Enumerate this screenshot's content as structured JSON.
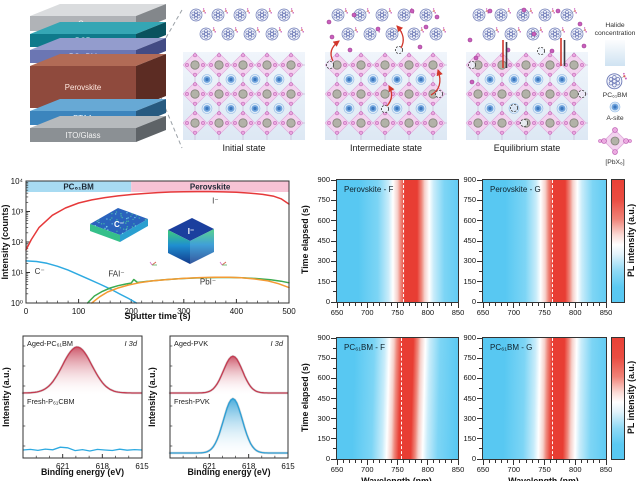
{
  "top": {
    "device_stack": {
      "layers": [
        {
          "label": "Cu",
          "front": "#b0b3b7",
          "top": "#dadcde",
          "side": "#83878b",
          "text": "#f8f8f8",
          "h": 15
        },
        {
          "label": "BCP",
          "front": "#0f7a8b",
          "top": "#35a6b4",
          "side": "#09525e",
          "text": "#eafcff",
          "h": 13
        },
        {
          "label": "PC₆₁BM",
          "front": "#6b76b3",
          "top": "#939ccd",
          "side": "#424b84",
          "text": "#eef0ff",
          "h": 13
        },
        {
          "label": "Perovskite",
          "front": "#8f4a3d",
          "top": "#b26b56",
          "side": "#5c2c23",
          "text": "#ffe9e1",
          "h": 42
        },
        {
          "label": "PTAA",
          "front": "#3c85bd",
          "top": "#67a9d5",
          "side": "#275a80",
          "text": "#eaf6ff",
          "h": 14
        },
        {
          "label": "ITO/Glass",
          "front": "#8b9094",
          "top": "#b6babd",
          "side": "#5e6367",
          "text": "#f4f4f4",
          "h": 14
        }
      ]
    },
    "state_captions": [
      "Initial state",
      "Intermediate state",
      "Equilibrium state"
    ],
    "legend": {
      "halide": "Halide concentration",
      "pcbm": "PC₆₁BM",
      "asite": "A-site",
      "pbx": "[PbX₆]"
    }
  },
  "palette": {
    "heat_low": "#58c8f2",
    "heat_high": "#e83d33",
    "ion_red": "#e6393a",
    "carbon_blue": "#2eaae1",
    "fai_green": "#3cab50",
    "pbi_orange": "#f49a33"
  },
  "chart_data": [
    {
      "id": "tof-sims-depth-profile",
      "type": "line",
      "xlabel": "Sputter time (s)",
      "ylabel": "Intensity (counts)",
      "xlim": [
        0,
        500
      ],
      "ylog": true,
      "ylim": [
        1,
        10000
      ],
      "x_ticks": [
        0,
        100,
        200,
        300,
        400,
        500
      ],
      "y_tick_labels": [
        "10⁰",
        "10¹",
        "10²",
        "10³",
        "10⁴"
      ],
      "regions": [
        {
          "label": "PC₆₁BM",
          "x0": 0,
          "x1": 200,
          "color": "#a8dbf2"
        },
        {
          "label": "Perovskite",
          "x0": 200,
          "x1": 500,
          "color": "#f7c3d5"
        }
      ],
      "series": [
        {
          "name": "I⁻",
          "color": "#e6393a",
          "points": [
            [
              0,
              55
            ],
            [
              10,
              120
            ],
            [
              25,
              300
            ],
            [
              50,
              750
            ],
            [
              75,
              1300
            ],
            [
              100,
              1900
            ],
            [
              125,
              2400
            ],
            [
              150,
              2850
            ],
            [
              175,
              3250
            ],
            [
              200,
              3600
            ],
            [
              225,
              3900
            ],
            [
              250,
              4150
            ],
            [
              275,
              4350
            ],
            [
              300,
              4450
            ],
            [
              325,
              4500
            ],
            [
              350,
              4480
            ],
            [
              375,
              4400
            ],
            [
              400,
              4250
            ],
            [
              425,
              4000
            ],
            [
              450,
              3650
            ],
            [
              470,
              3200
            ],
            [
              485,
              2600
            ],
            [
              500,
              1750
            ]
          ]
        },
        {
          "name": "C⁻",
          "color": "#2eaae1",
          "points": [
            [
              0,
              24
            ],
            [
              20,
              23
            ],
            [
              40,
              20
            ],
            [
              60,
              16
            ],
            [
              80,
              12
            ],
            [
              100,
              8.5
            ],
            [
              120,
              6
            ],
            [
              140,
              4.2
            ],
            [
              160,
              2.9
            ],
            [
              180,
              1.9
            ],
            [
              195,
              1.4
            ],
            [
              210,
              1.0
            ]
          ]
        },
        {
          "name": "FAI⁻",
          "color": "#3cab50",
          "points": [
            [
              117,
              1.0
            ],
            [
              130,
              1.7
            ],
            [
              145,
              2.4
            ],
            [
              160,
              3.1
            ],
            [
              175,
              3.7
            ],
            [
              190,
              4.2
            ],
            [
              200,
              4.5
            ],
            [
              205,
              5.9
            ],
            [
              212,
              4.7
            ],
            [
              230,
              5.1
            ],
            [
              260,
              5.7
            ],
            [
              290,
              6.2
            ],
            [
              320,
              6.6
            ],
            [
              350,
              6.8
            ],
            [
              380,
              6.9
            ],
            [
              410,
              6.7
            ],
            [
              440,
              6.3
            ],
            [
              465,
              5.8
            ],
            [
              485,
              5.2
            ],
            [
              500,
              4.6
            ]
          ]
        },
        {
          "name": "PbI⁻",
          "color": "#f49a33",
          "points": [
            [
              125,
              1.0
            ],
            [
              140,
              1.6
            ],
            [
              155,
              2.3
            ],
            [
              175,
              3.1
            ],
            [
              195,
              3.9
            ],
            [
              215,
              4.6
            ],
            [
              240,
              5.3
            ],
            [
              270,
              5.9
            ],
            [
              300,
              6.4
            ],
            [
              330,
              6.8
            ],
            [
              360,
              7.0
            ],
            [
              385,
              7.0
            ],
            [
              410,
              6.7
            ],
            [
              435,
              6.1
            ],
            [
              460,
              5.3
            ],
            [
              480,
              4.3
            ],
            [
              500,
              3.2
            ]
          ]
        }
      ],
      "series_labels": [
        {
          "text": "I⁻",
          "x": 360,
          "y": 1800
        },
        {
          "text": "C⁻",
          "x": 26,
          "y": 9
        },
        {
          "text": "FAI⁻",
          "x": 172,
          "y": 7.5
        },
        {
          "text": "PbI⁻",
          "x": 346,
          "y": 4.0
        }
      ],
      "insets": [
        {
          "label": "C⁻"
        },
        {
          "label": "I⁻"
        }
      ]
    },
    {
      "id": "pl-map-perovskite-f",
      "type": "heatmap",
      "title": "Perovskite - F",
      "xlim": [
        650,
        850
      ],
      "ylim": [
        0,
        900
      ],
      "x_ticks": [
        650,
        700,
        750,
        800,
        850
      ],
      "y_ticks": [
        0,
        150,
        300,
        450,
        600,
        750,
        900
      ],
      "ylabel": "Time elapsed (s)",
      "band_center_nm": 768,
      "dash_nm": 761,
      "tilt_nm": 0
    },
    {
      "id": "pl-map-perovskite-g",
      "type": "heatmap",
      "title": "Perovskite - G",
      "xlim": [
        650,
        850
      ],
      "ylim": [
        0,
        900
      ],
      "x_ticks": [
        650,
        700,
        750,
        800,
        850
      ],
      "y_ticks": [
        0,
        150,
        300,
        450,
        600,
        750,
        900
      ],
      "band_center_nm": 769,
      "dash_nm": 763,
      "tilt_nm": 0,
      "colorbar_label": "PL intensity (a.u.)"
    },
    {
      "id": "pl-map-pcbm-f",
      "type": "heatmap",
      "title": "PC₆₁BM - F",
      "xlim": [
        650,
        850
      ],
      "ylim": [
        0,
        900
      ],
      "x_ticks": [
        650,
        700,
        750,
        800,
        850
      ],
      "y_ticks": [
        0,
        150,
        300,
        450,
        600,
        750,
        900
      ],
      "ylabel": "Time elapsed (s)",
      "xlabel": "Wavelength (nm)",
      "band_center_nm": 762,
      "dash_nm": 757,
      "tilt_nm": -5
    },
    {
      "id": "pl-map-pcbm-g",
      "type": "heatmap",
      "title": "PC₆₁BM - G",
      "xlim": [
        650,
        850
      ],
      "ylim": [
        0,
        900
      ],
      "x_ticks": [
        650,
        700,
        750,
        800,
        850
      ],
      "y_ticks": [
        0,
        150,
        300,
        450,
        600,
        750,
        900
      ],
      "xlabel": "Wavelength (nm)",
      "band_center_nm": 767,
      "dash_nm": 763,
      "tilt_nm": -3,
      "colorbar_label": "PL intensity (a.u.)"
    },
    {
      "id": "xps-i3d-pcbm",
      "type": "area",
      "xlabel": "Binding energy (eV)",
      "ylabel": "Intensity (a.u.)",
      "annotation": "I 3d",
      "xlim": [
        624,
        615
      ],
      "x_ticks": [
        621,
        618,
        615
      ],
      "traces": [
        {
          "label": "Aged-PC₆₁BM",
          "kind": "peak",
          "color": "#c43b51",
          "center_eV": 619.9,
          "fwhm_eV": 2.6,
          "rel_height": 1.0
        },
        {
          "label": "Fresh-P₆₁CBM",
          "kind": "flat",
          "color": "#2eaae1"
        }
      ]
    },
    {
      "id": "xps-i3d-pvk",
      "type": "area",
      "xlabel": "Binding energy (eV)",
      "ylabel": "Intensity (a.u.)",
      "annotation": "I 3d",
      "xlim": [
        624,
        615
      ],
      "x_ticks": [
        621,
        618,
        615
      ],
      "traces": [
        {
          "label": "Aged-PVK",
          "kind": "peak",
          "color": "#c43b51",
          "center_eV": 619.2,
          "fwhm_eV": 1.7,
          "rel_height": 0.8
        },
        {
          "label": "Fresh-PVK",
          "kind": "peak",
          "color": "#2d9fd6",
          "center_eV": 619.2,
          "fwhm_eV": 1.7,
          "rel_height": 1.18
        }
      ]
    }
  ]
}
